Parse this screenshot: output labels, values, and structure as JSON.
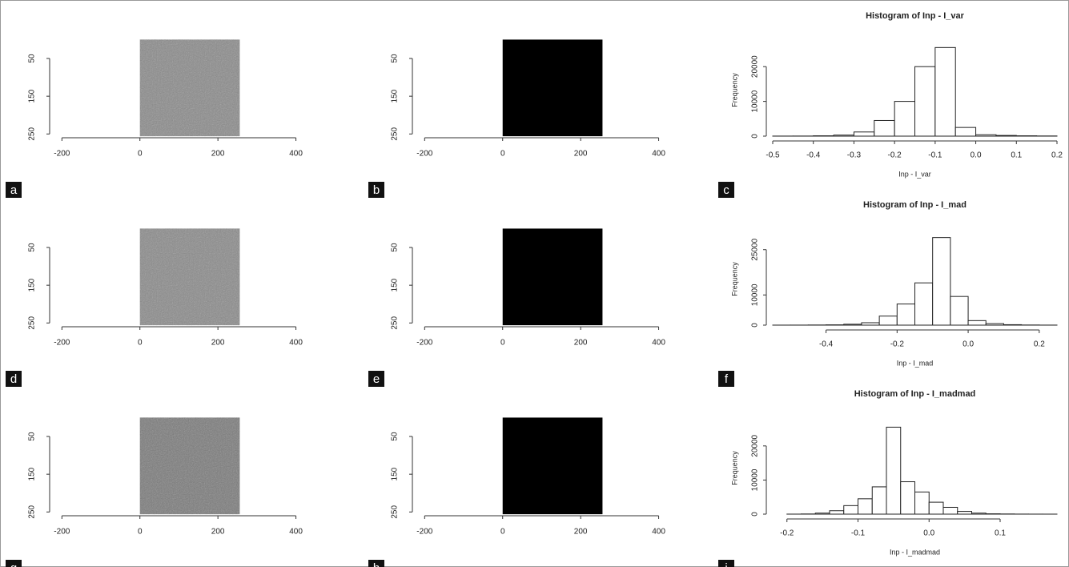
{
  "chart_data": [
    {
      "type": "image",
      "label": "a",
      "color": "#8a8a8a",
      "extent": [
        0,
        256,
        0,
        256
      ],
      "xlim": [
        -215,
        405
      ],
      "xticks": [
        -200,
        0,
        200,
        400
      ],
      "ylim": [
        260,
        -20
      ],
      "yticks": [
        50,
        150,
        250
      ]
    },
    {
      "type": "image",
      "label": "b",
      "color": "#000000",
      "extent": [
        0,
        256,
        0,
        256
      ],
      "xlim": [
        -215,
        405
      ],
      "xticks": [
        -200,
        0,
        200,
        400
      ],
      "ylim": [
        260,
        -20
      ],
      "yticks": [
        50,
        150,
        250
      ]
    },
    {
      "type": "histogram",
      "label": "c",
      "title": "Histogram of Inp - I_var",
      "x_label": "Inp - I_var",
      "y_label": "Frequency",
      "bins": [
        -0.5,
        -0.45,
        -0.4,
        -0.35,
        -0.3,
        -0.25,
        -0.2,
        -0.15,
        -0.1,
        -0.05,
        0,
        0.05,
        0.1,
        0.15,
        0.2
      ],
      "values": [
        20,
        30,
        100,
        300,
        1200,
        4500,
        10000,
        20000,
        25500,
        2500,
        400,
        200,
        100,
        50
      ],
      "xlim": [
        -0.5,
        0.2
      ],
      "xticks": [
        -0.5,
        -0.4,
        -0.3,
        -0.2,
        -0.1,
        {
          "value": 0,
          "label": "0.0"
        },
        0.1,
        0.2
      ],
      "ylim": [
        0,
        26500
      ],
      "yticks": [
        0,
        10000,
        20000
      ]
    },
    {
      "type": "image",
      "label": "d",
      "color": "#8a8a8a",
      "extent": [
        0,
        256,
        0,
        256
      ],
      "xlim": [
        -215,
        405
      ],
      "xticks": [
        -200,
        0,
        200,
        400
      ],
      "ylim": [
        260,
        -20
      ],
      "yticks": [
        50,
        150,
        250
      ]
    },
    {
      "type": "image",
      "label": "e",
      "color": "#000000",
      "extent": [
        0,
        256,
        0,
        256
      ],
      "xlim": [
        -215,
        405
      ],
      "xticks": [
        -200,
        0,
        200,
        400
      ],
      "ylim": [
        260,
        -20
      ],
      "yticks": [
        50,
        150,
        250
      ]
    },
    {
      "type": "histogram",
      "label": "f",
      "title": "Histogram of Inp - I_mad",
      "x_label": "Inp - I_mad",
      "y_label": "Frequency",
      "bins": [
        -0.55,
        -0.5,
        -0.45,
        -0.4,
        -0.35,
        -0.3,
        -0.25,
        -0.2,
        -0.15,
        -0.1,
        -0.05,
        0,
        0.05,
        0.1,
        0.15,
        0.2,
        0.25
      ],
      "values": [
        10,
        20,
        50,
        100,
        300,
        800,
        3000,
        7000,
        14000,
        29000,
        9500,
        1500,
        500,
        150,
        50,
        20
      ],
      "xlim": [
        -0.55,
        0.25
      ],
      "xticks": [
        -0.4,
        -0.2,
        {
          "value": 0,
          "label": "0.0"
        },
        0.2
      ],
      "ylim": [
        0,
        30500
      ],
      "yticks": [
        0,
        10000,
        25000
      ]
    },
    {
      "type": "image",
      "label": "g",
      "color": "#7a7a7a",
      "extent": [
        0,
        256,
        0,
        256
      ],
      "xlim": [
        -215,
        405
      ],
      "xticks": [
        -200,
        0,
        200,
        400
      ],
      "ylim": [
        260,
        -20
      ],
      "yticks": [
        50,
        150,
        250
      ]
    },
    {
      "type": "image",
      "label": "h",
      "color": "#000000",
      "extent": [
        0,
        256,
        0,
        256
      ],
      "xlim": [
        -215,
        405
      ],
      "xticks": [
        -200,
        0,
        200,
        400
      ],
      "ylim": [
        260,
        -20
      ],
      "yticks": [
        50,
        150,
        250
      ]
    },
    {
      "type": "histogram",
      "label": "i",
      "title": "Histogram of Inp - I_madmad",
      "x_label": "Inp - I_madmad",
      "y_label": "Frequency",
      "bins": [
        -0.2,
        -0.18,
        -0.16,
        -0.14,
        -0.12,
        -0.1,
        -0.08,
        -0.06,
        -0.04,
        -0.02,
        0,
        0.02,
        0.04,
        0.06,
        0.08,
        0.1,
        0.12,
        0.14,
        0.16,
        0.18
      ],
      "values": [
        10,
        50,
        300,
        1000,
        2500,
        4500,
        8000,
        25500,
        9500,
        6500,
        3500,
        2000,
        800,
        300,
        100,
        50,
        20,
        10,
        5
      ],
      "xlim": [
        -0.22,
        0.18
      ],
      "xticks": [
        -0.2,
        -0.1,
        {
          "value": 0,
          "label": "0.0"
        },
        0.1
      ],
      "ylim": [
        0,
        27000
      ],
      "yticks": [
        0,
        10000,
        20000
      ]
    }
  ]
}
